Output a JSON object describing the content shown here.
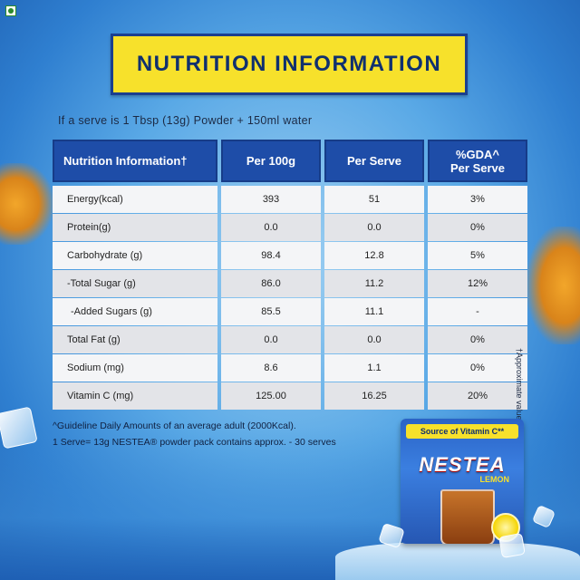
{
  "title": "NUTRITION INFORMATION",
  "serve_note": "If a serve is 1 Tbsp (13g) Powder + 150ml water",
  "table": {
    "headers": [
      "Nutrition Information†",
      "Per 100g",
      "Per Serve",
      "%GDA^\nPer Serve"
    ],
    "rows": [
      [
        "Energy(kcal)",
        "393",
        "51",
        "3%"
      ],
      [
        "Protein(g)",
        "0.0",
        "0.0",
        "0%"
      ],
      [
        "Carbohydrate (g)",
        "98.4",
        "12.8",
        "5%"
      ],
      [
        "-Total Sugar (g)",
        "86.0",
        "11.2",
        "12%"
      ],
      [
        "-Added Sugars (g)",
        "85.5",
        "11.1",
        "-"
      ],
      [
        "Total Fat (g)",
        "0.0",
        "0.0",
        "0%"
      ],
      [
        "Sodium (mg)",
        "8.6",
        "1.1",
        "0%"
      ],
      [
        "Vitamin C (mg)",
        "125.00",
        "16.25",
        "20%"
      ]
    ]
  },
  "side_note": "†Approximate values",
  "footnotes": [
    "^Guideline Daily Amounts of an average adult (2000Kcal).",
    "1 Serve= 13g NESTEA® powder pack contains approx. - 30 serves"
  ],
  "pack": {
    "banner": "Source of Vitamin C**",
    "brand": "NESTEA",
    "flavor": "LEMON"
  },
  "colors": {
    "header_bg": "#1e4da8",
    "title_bg": "#f7e12b",
    "title_text": "#10306f"
  },
  "icons": [
    "veg-mark-icon",
    "ice-cube-icon",
    "tea-splash-icon",
    "lemon-icon"
  ]
}
